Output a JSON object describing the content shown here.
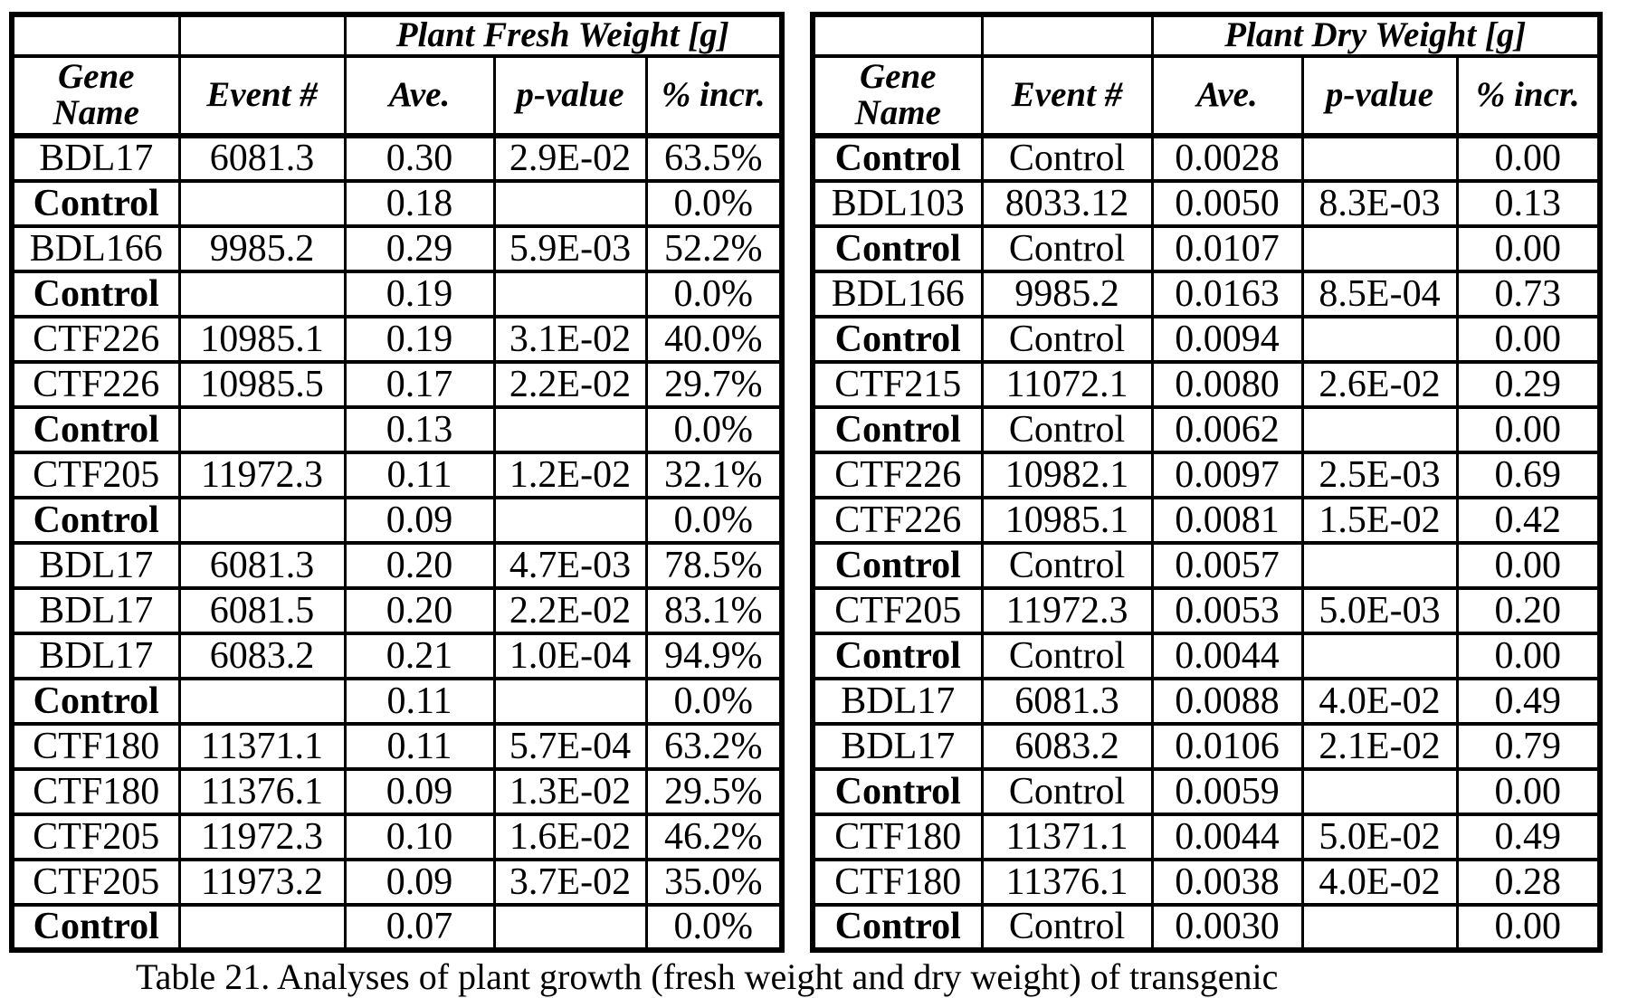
{
  "page": {
    "background_color": "#ffffff",
    "text_color": "#000000",
    "border_color": "#000000"
  },
  "caption": {
    "fragment": "Table 21. Analyses of plant growth (fresh weight and dry weight) of transgenic",
    "note": "bottom caption line, vertically clipped in screenshot"
  },
  "tables": [
    {
      "id": "fresh-weight",
      "group_header": "Plant Fresh Weight [g]",
      "columns": [
        "Gene\nName",
        "Event #",
        "Ave.",
        "p-value",
        "% incr."
      ],
      "rows": [
        [
          "BDL17",
          "6081.3",
          "0.30",
          "2.9E-02",
          "63.5%"
        ],
        [
          "Control",
          "",
          "0.18",
          "",
          "0.0%"
        ],
        [
          "BDL166",
          "9985.2",
          "0.29",
          "5.9E-03",
          "52.2%"
        ],
        [
          "Control",
          "",
          "0.19",
          "",
          "0.0%"
        ],
        [
          "CTF226",
          "10985.1",
          "0.19",
          "3.1E-02",
          "40.0%"
        ],
        [
          "CTF226",
          "10985.5",
          "0.17",
          "2.2E-02",
          "29.7%"
        ],
        [
          "Control",
          "",
          "0.13",
          "",
          "0.0%"
        ],
        [
          "CTF205",
          "11972.3",
          "0.11",
          "1.2E-02",
          "32.1%"
        ],
        [
          "Control",
          "",
          "0.09",
          "",
          "0.0%"
        ],
        [
          "BDL17",
          "6081.3",
          "0.20",
          "4.7E-03",
          "78.5%"
        ],
        [
          "BDL17",
          "6081.5",
          "0.20",
          "2.2E-02",
          "83.1%"
        ],
        [
          "BDL17",
          "6083.2",
          "0.21",
          "1.0E-04",
          "94.9%"
        ],
        [
          "Control",
          "",
          "0.11",
          "",
          "0.0%"
        ],
        [
          "CTF180",
          "11371.1",
          "0.11",
          "5.7E-04",
          "63.2%"
        ],
        [
          "CTF180",
          "11376.1",
          "0.09",
          "1.3E-02",
          "29.5%"
        ],
        [
          "CTF205",
          "11972.3",
          "0.10",
          "1.6E-02",
          "46.2%"
        ],
        [
          "CTF205",
          "11973.2",
          "0.09",
          "3.7E-02",
          "35.0%"
        ],
        [
          "Control",
          "",
          "0.07",
          "",
          "0.0%"
        ]
      ]
    },
    {
      "id": "dry-weight",
      "group_header": "Plant Dry Weight [g]",
      "columns": [
        "Gene\nName",
        "Event #",
        "Ave.",
        "p-value",
        "% incr."
      ],
      "rows": [
        [
          "Control",
          "Control",
          "0.0028",
          "",
          "0.00"
        ],
        [
          "BDL103",
          "8033.12",
          "0.0050",
          "8.3E-03",
          "0.13"
        ],
        [
          "Control",
          "Control",
          "0.0107",
          "",
          "0.00"
        ],
        [
          "BDL166",
          "9985.2",
          "0.0163",
          "8.5E-04",
          "0.73"
        ],
        [
          "Control",
          "Control",
          "0.0094",
          "",
          "0.00"
        ],
        [
          "CTF215",
          "11072.1",
          "0.0080",
          "2.6E-02",
          "0.29"
        ],
        [
          "Control",
          "Control",
          "0.0062",
          "",
          "0.00"
        ],
        [
          "CTF226",
          "10982.1",
          "0.0097",
          "2.5E-03",
          "0.69"
        ],
        [
          "CTF226",
          "10985.1",
          "0.0081",
          "1.5E-02",
          "0.42"
        ],
        [
          "Control",
          "Control",
          "0.0057",
          "",
          "0.00"
        ],
        [
          "CTF205",
          "11972.3",
          "0.0053",
          "5.0E-03",
          "0.20"
        ],
        [
          "Control",
          "Control",
          "0.0044",
          "",
          "0.00"
        ],
        [
          "BDL17",
          "6081.3",
          "0.0088",
          "4.0E-02",
          "0.49"
        ],
        [
          "BDL17",
          "6083.2",
          "0.0106",
          "2.1E-02",
          "0.79"
        ],
        [
          "Control",
          "Control",
          "0.0059",
          "",
          "0.00"
        ],
        [
          "CTF180",
          "11371.1",
          "0.0044",
          "5.0E-02",
          "0.49"
        ],
        [
          "CTF180",
          "11376.1",
          "0.0038",
          "4.0E-02",
          "0.28"
        ],
        [
          "Control",
          "Control",
          "0.0030",
          "",
          "0.00"
        ]
      ]
    }
  ]
}
